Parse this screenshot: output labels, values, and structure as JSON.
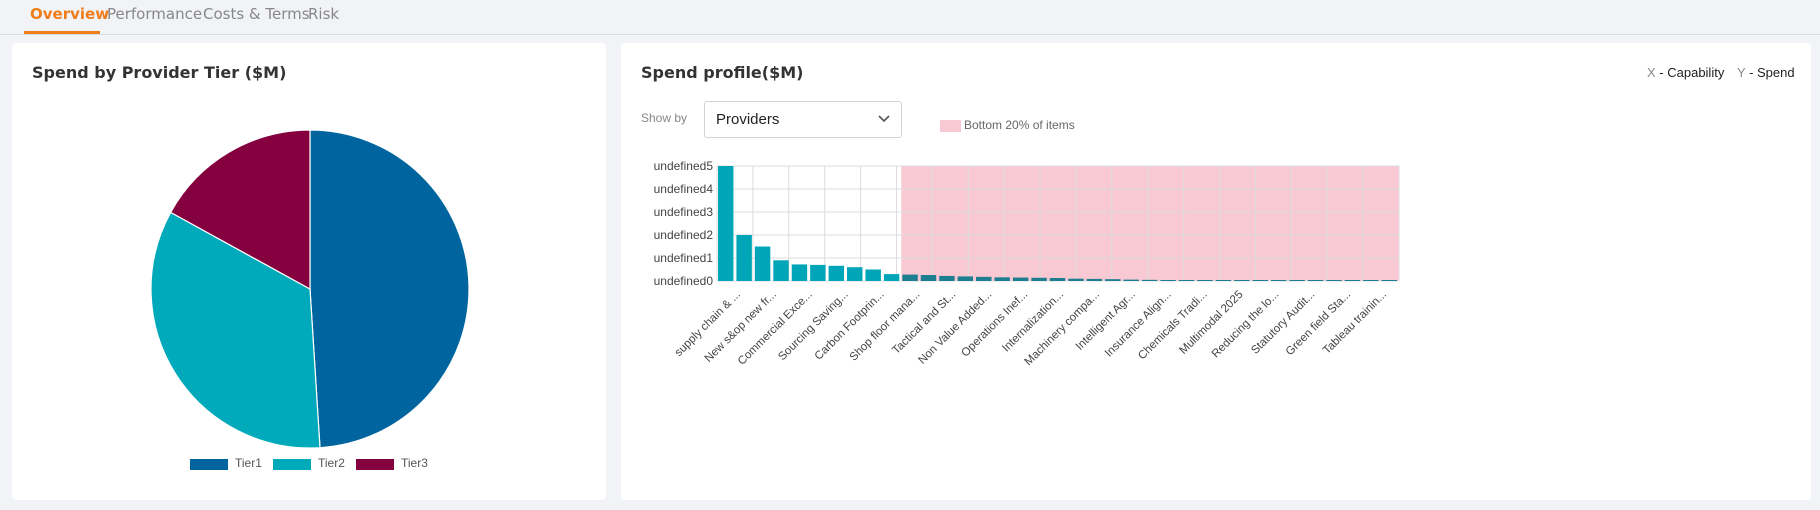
{
  "tabs": [
    {
      "label": "Overview",
      "active": true
    },
    {
      "label": "Performance",
      "active": false
    },
    {
      "label": "Costs & Terms",
      "active": false
    },
    {
      "label": "Risk",
      "active": false
    }
  ],
  "colors": {
    "accent": "#ef7d1a",
    "tier1": "#00659e",
    "tier2": "#00aabb",
    "tier3": "#84003f",
    "bar_highlight": "#00a6b8",
    "bar_muted": "#1d7e90",
    "bottom_region": "#f8c9d3"
  },
  "pie_card": {
    "title": "Spend by Provider Tier ($M)",
    "legend": [
      "Tier1",
      "Tier2",
      "Tier3"
    ]
  },
  "profile_card": {
    "title": "Spend profile($M)",
    "axis_keys": {
      "x_key": "X",
      "x_label": "- Capability",
      "y_key": "Y",
      "y_label": "- Spend"
    },
    "show_by": {
      "label": "Show by",
      "value": "Providers",
      "icon": "chevron-down-icon"
    },
    "bottom_legend": "Bottom 20% of items"
  },
  "chart_data": [
    {
      "type": "pie",
      "title": "Spend by Provider Tier ($M)",
      "categories": [
        "Tier1",
        "Tier2",
        "Tier3"
      ],
      "values": [
        49,
        34,
        17
      ],
      "legend_position": "bottom"
    },
    {
      "type": "bar",
      "title": "Spend profile($M)",
      "ylim": [
        0,
        5
      ],
      "y_tick_labels": [
        "undefined0",
        "undefined1",
        "undefined2",
        "undefined3",
        "undefined4",
        "undefined5"
      ],
      "values": [
        5.0,
        2.0,
        1.5,
        0.9,
        0.72,
        0.7,
        0.66,
        0.6,
        0.5,
        0.3,
        0.28,
        0.26,
        0.22,
        0.2,
        0.18,
        0.16,
        0.15,
        0.14,
        0.13,
        0.1,
        0.09,
        0.08,
        0.06,
        0.05,
        0.04,
        0.03,
        0.02,
        0.02,
        0.01,
        0.01,
        0.01,
        0.01,
        0.01,
        0.01,
        0.01,
        0.01,
        0.01
      ],
      "bottom_region_start_index": 10,
      "bottom_region_label": "Bottom 20% of items",
      "x_tick_labels": [
        "supply chain & ...",
        "New s&op new fr...",
        "Commercial Exce...",
        "Sourcing Saving...",
        "Carbon Footprin...",
        "Shop floor mana...",
        "Tactical and St...",
        "Non Value Added...",
        "Operations Inef...",
        "Internalization...",
        "Machinery compa...",
        "Intelligent Agr...",
        "Insurance Align...",
        "Chemicals Tradi...",
        "Multimodal 2025",
        "Reducing the lo...",
        "Statutory Audit...",
        "Green field Sta...",
        "Tableau trainin..."
      ],
      "grid": true
    }
  ]
}
